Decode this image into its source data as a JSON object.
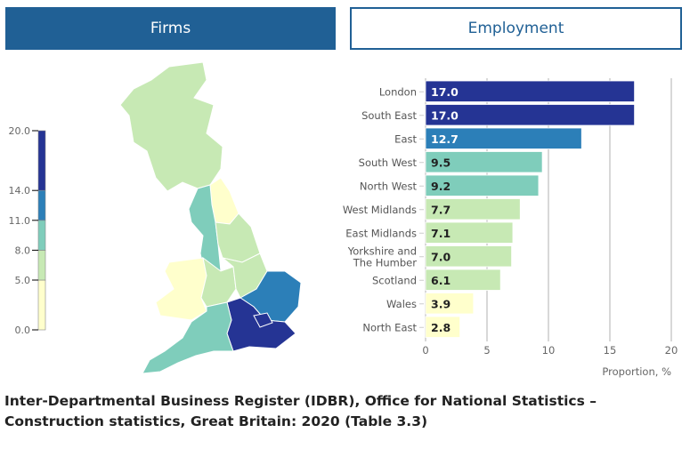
{
  "tabs": [
    {
      "label": "Firms",
      "active": true
    },
    {
      "label": "Employment",
      "active": false
    }
  ],
  "legend": {
    "ticks": [
      "0.0",
      "5.0",
      "8.0",
      "11.0",
      "14.0",
      "20.0"
    ],
    "bins": [
      {
        "from": 0,
        "to": 5,
        "color": "#ffffcc"
      },
      {
        "from": 5,
        "to": 8,
        "color": "#c7e9b4"
      },
      {
        "from": 8,
        "to": 11,
        "color": "#7fcdbb"
      },
      {
        "from": 11,
        "to": 14,
        "color": "#2c7fb8"
      },
      {
        "from": 14,
        "to": 20,
        "color": "#253494"
      }
    ]
  },
  "chart_data": {
    "type": "bar",
    "orientation": "horizontal",
    "categories": [
      "London",
      "South East",
      "East",
      "South West",
      "North West",
      "West Midlands",
      "East Midlands",
      "Yorkshire and The Humber",
      "Scotland",
      "Wales",
      "North East"
    ],
    "category_lines": [
      [
        "London"
      ],
      [
        "South East"
      ],
      [
        "East"
      ],
      [
        "South West"
      ],
      [
        "North West"
      ],
      [
        "West Midlands"
      ],
      [
        "East Midlands"
      ],
      [
        "Yorkshire and",
        "The Humber"
      ],
      [
        "Scotland"
      ],
      [
        "Wales"
      ],
      [
        "North East"
      ]
    ],
    "values": [
      17.0,
      17.0,
      12.7,
      9.5,
      9.2,
      7.7,
      7.1,
      7.0,
      6.1,
      3.9,
      2.8
    ],
    "value_labels": [
      "17.0",
      "17.0",
      "12.7",
      "9.5",
      "9.2",
      "7.7",
      "7.1",
      "7.0",
      "6.1",
      "3.9",
      "2.8"
    ],
    "xlabel": "Proportion, %",
    "xlim": [
      0,
      20
    ],
    "xticks": [
      "0",
      "5",
      "10",
      "15",
      "20"
    ],
    "grid": true
  },
  "source": {
    "line1": "Inter-Departmental Business Register (IDBR), Office for National Statistics –",
    "line2": "Construction statistics, Great Britain: 2020 (Table 3.3)"
  }
}
